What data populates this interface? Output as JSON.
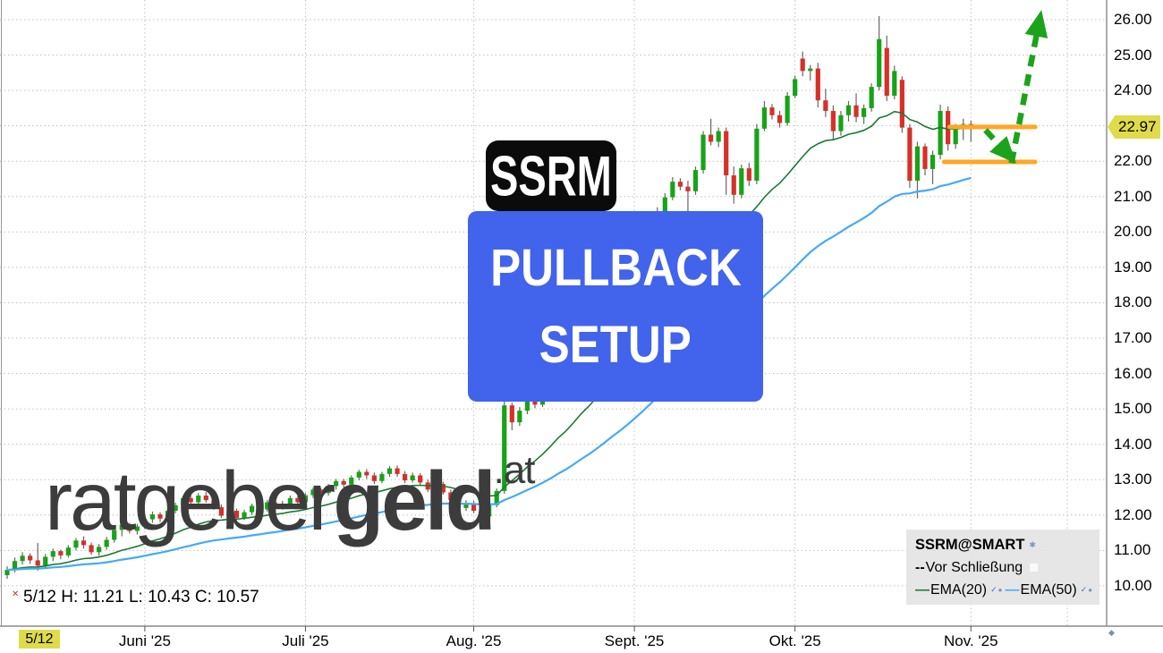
{
  "watermark": {
    "main": "ratgeber",
    "bold": "geld",
    "tld": ".at"
  },
  "overlay": {
    "ticker": "SSRM",
    "line1": "PULLBACK",
    "line2": "SETUP",
    "box_color": "#4263eb",
    "badge_color": "#0b0b0b"
  },
  "readout": {
    "marker": "✕",
    "text": "5/12 H: 11.21 L: 10.43 C: 10.57"
  },
  "price_tag": {
    "value": "22.97",
    "color": "#dfdb4a"
  },
  "legend": {
    "title": "SSRM@SMART",
    "title_icon": "✱",
    "row2_prefix": "--",
    "row2_label": "Vor Schließung",
    "ema20_prefix": "—",
    "ema20_label": "EMA(20)",
    "ema50_prefix": "—",
    "ema50_label": "EMA(50)",
    "check_icon": "✓",
    "dot_icon": "●"
  },
  "x_axis": {
    "highlight_label": "5/12",
    "end_marker": "◆",
    "months": [
      {
        "label": "Juni '25",
        "index": 18
      },
      {
        "label": "Juli '25",
        "index": 39
      },
      {
        "label": "Aug. '25",
        "index": 61
      },
      {
        "label": "Sept. '25",
        "index": 82
      },
      {
        "label": "Okt. '25",
        "index": 103
      },
      {
        "label": "Nov. '25",
        "index": 126
      }
    ]
  },
  "y_axis": {
    "ticks": [
      {
        "value": 26,
        "label": "26.00"
      },
      {
        "value": 25,
        "label": "25.00"
      },
      {
        "value": 24,
        "label": "24.00"
      },
      {
        "value": 22,
        "label": "22.00"
      },
      {
        "value": 21,
        "label": "21.00"
      },
      {
        "value": 20,
        "label": "20.00"
      },
      {
        "value": 19,
        "label": "19.00"
      },
      {
        "value": 18,
        "label": "18.00"
      },
      {
        "value": 17,
        "label": "17.00"
      },
      {
        "value": 16,
        "label": "16.00"
      },
      {
        "value": 15,
        "label": "15.00"
      },
      {
        "value": 14,
        "label": "14.00"
      },
      {
        "value": 13,
        "label": "13.00"
      },
      {
        "value": 12,
        "label": "12.00"
      },
      {
        "value": 11,
        "label": "11.00"
      },
      {
        "value": 10,
        "label": "10.00"
      }
    ],
    "gridline_values": [
      10,
      11,
      12,
      13,
      14,
      15,
      16,
      17,
      18,
      19,
      20,
      21,
      22,
      23,
      24,
      25,
      26
    ]
  },
  "chart_data": {
    "type": "candlestick",
    "symbol": "SSRM",
    "title": "SSRM@SMART",
    "ylim": [
      10,
      26
    ],
    "grid": true,
    "last_price": 22.97,
    "selected_candle_index": 4,
    "ema_periods": [
      20,
      50
    ],
    "colors": {
      "up": "#17a317",
      "down": "#d63029",
      "wick": "#666666",
      "ema20": "#1b7a33",
      "ema50": "#47a9f5",
      "grid": "#c0c0c0",
      "level": "#ffa726",
      "arrow": "#1ba41b"
    },
    "candles": [
      [
        10.3,
        10.55,
        10.2,
        10.45
      ],
      [
        10.45,
        10.8,
        10.38,
        10.7
      ],
      [
        10.7,
        10.95,
        10.6,
        10.85
      ],
      [
        10.85,
        10.92,
        10.62,
        10.72
      ],
      [
        10.72,
        11.21,
        10.43,
        10.57
      ],
      [
        10.57,
        10.9,
        10.5,
        10.82
      ],
      [
        10.82,
        11.05,
        10.7,
        10.98
      ],
      [
        10.98,
        11.02,
        10.75,
        10.86
      ],
      [
        10.86,
        11.15,
        10.8,
        11.08
      ],
      [
        11.08,
        11.35,
        11.0,
        11.28
      ],
      [
        11.28,
        11.4,
        11.05,
        11.15
      ],
      [
        11.15,
        11.22,
        10.88,
        10.95
      ],
      [
        10.95,
        11.18,
        10.85,
        11.1
      ],
      [
        11.1,
        11.38,
        11.02,
        11.3
      ],
      [
        11.3,
        11.65,
        11.22,
        11.58
      ],
      [
        11.58,
        11.8,
        11.4,
        11.72
      ],
      [
        11.72,
        11.78,
        11.48,
        11.55
      ],
      [
        11.55,
        11.75,
        11.45,
        11.68
      ],
      [
        11.68,
        11.95,
        11.6,
        11.88
      ],
      [
        11.88,
        12.1,
        11.78,
        12.02
      ],
      [
        12.02,
        12.08,
        11.8,
        11.9
      ],
      [
        11.9,
        12.18,
        11.85,
        12.12
      ],
      [
        12.12,
        12.35,
        12.05,
        12.28
      ],
      [
        12.28,
        12.55,
        12.2,
        12.48
      ],
      [
        12.48,
        12.6,
        12.28,
        12.36
      ],
      [
        12.36,
        12.62,
        12.3,
        12.55
      ],
      [
        12.55,
        12.65,
        12.35,
        12.42
      ],
      [
        12.42,
        12.5,
        12.15,
        12.22
      ],
      [
        12.22,
        12.3,
        11.92,
        11.98
      ],
      [
        11.98,
        12.2,
        11.9,
        12.12
      ],
      [
        12.12,
        12.18,
        11.85,
        11.92
      ],
      [
        11.92,
        12.15,
        11.86,
        12.08
      ],
      [
        12.08,
        12.32,
        12.0,
        12.26
      ],
      [
        12.26,
        12.34,
        12.08,
        12.16
      ],
      [
        12.16,
        12.42,
        12.1,
        12.36
      ],
      [
        12.36,
        12.44,
        12.14,
        12.22
      ],
      [
        12.22,
        12.4,
        12.15,
        12.32
      ],
      [
        12.32,
        12.55,
        12.25,
        12.48
      ],
      [
        12.48,
        12.55,
        12.28,
        12.36
      ],
      [
        12.36,
        12.62,
        12.3,
        12.56
      ],
      [
        12.56,
        12.78,
        12.48,
        12.72
      ],
      [
        12.72,
        12.78,
        12.52,
        12.62
      ],
      [
        12.62,
        12.88,
        12.55,
        12.82
      ],
      [
        12.82,
        13.02,
        12.72,
        12.96
      ],
      [
        12.96,
        13.02,
        12.78,
        12.86
      ],
      [
        12.86,
        13.12,
        12.8,
        13.06
      ],
      [
        13.06,
        13.28,
        12.98,
        13.22
      ],
      [
        13.22,
        13.3,
        13.02,
        13.12
      ],
      [
        13.12,
        13.2,
        12.88,
        12.96
      ],
      [
        12.96,
        13.22,
        12.9,
        13.16
      ],
      [
        13.16,
        13.38,
        13.08,
        13.32
      ],
      [
        13.32,
        13.4,
        13.08,
        13.16
      ],
      [
        13.16,
        13.24,
        12.9,
        12.98
      ],
      [
        12.98,
        13.2,
        12.92,
        13.12
      ],
      [
        13.12,
        13.18,
        12.85,
        12.92
      ],
      [
        12.92,
        13.0,
        12.65,
        12.72
      ],
      [
        12.72,
        12.95,
        12.65,
        12.88
      ],
      [
        12.88,
        12.94,
        12.58,
        12.64
      ],
      [
        12.64,
        12.72,
        12.35,
        12.42
      ],
      [
        12.42,
        12.52,
        12.12,
        12.2
      ],
      [
        12.2,
        12.42,
        12.12,
        12.32
      ],
      [
        12.32,
        12.4,
        12.05,
        12.12
      ],
      [
        12.12,
        12.22,
        11.88,
        11.96
      ],
      [
        11.96,
        12.35,
        11.9,
        12.28
      ],
      [
        12.28,
        12.75,
        12.22,
        12.68
      ],
      [
        12.68,
        15.35,
        12.6,
        15.1
      ],
      [
        15.1,
        15.18,
        14.4,
        14.62
      ],
      [
        14.62,
        15.05,
        14.52,
        14.95
      ],
      [
        14.95,
        15.4,
        14.85,
        15.28
      ],
      [
        15.28,
        15.38,
        15.02,
        15.12
      ],
      [
        15.12,
        15.6,
        15.05,
        15.52
      ],
      [
        15.52,
        16.1,
        15.45,
        16.0
      ],
      [
        16.0,
        16.55,
        15.9,
        16.42
      ],
      [
        16.42,
        16.5,
        16.1,
        16.22
      ],
      [
        16.22,
        16.9,
        16.15,
        16.8
      ],
      [
        16.8,
        17.4,
        16.72,
        17.28
      ],
      [
        17.28,
        17.35,
        16.95,
        17.08
      ],
      [
        17.08,
        17.7,
        17.0,
        17.6
      ],
      [
        17.6,
        18.2,
        17.52,
        18.1
      ],
      [
        18.1,
        18.6,
        18.0,
        18.48
      ],
      [
        18.48,
        18.55,
        18.15,
        18.28
      ],
      [
        18.28,
        18.9,
        18.2,
        18.8
      ],
      [
        18.8,
        19.4,
        18.72,
        19.3
      ],
      [
        19.3,
        19.8,
        19.2,
        19.68
      ],
      [
        19.68,
        20.2,
        19.6,
        20.08
      ],
      [
        20.08,
        20.7,
        20.0,
        20.58
      ],
      [
        20.58,
        21.1,
        20.48,
        20.98
      ],
      [
        20.98,
        21.55,
        20.9,
        21.42
      ],
      [
        21.42,
        21.52,
        21.18,
        21.28
      ],
      [
        21.28,
        21.45,
        20.4,
        21.15
      ],
      [
        21.15,
        21.85,
        21.05,
        21.75
      ],
      [
        21.75,
        22.85,
        21.65,
        22.75
      ],
      [
        22.75,
        23.2,
        22.45,
        22.55
      ],
      [
        22.55,
        22.95,
        22.4,
        22.85
      ],
      [
        22.85,
        22.95,
        21.05,
        21.6
      ],
      [
        21.6,
        21.85,
        20.8,
        21.05
      ],
      [
        21.05,
        21.9,
        20.95,
        21.8
      ],
      [
        21.8,
        21.95,
        21.3,
        21.45
      ],
      [
        21.45,
        23.05,
        21.35,
        22.92
      ],
      [
        22.92,
        23.7,
        22.85,
        23.52
      ],
      [
        23.52,
        23.62,
        23.18,
        23.3
      ],
      [
        23.3,
        23.42,
        22.95,
        23.08
      ],
      [
        23.08,
        23.95,
        23.0,
        23.85
      ],
      [
        23.85,
        24.42,
        23.78,
        24.32
      ],
      [
        24.9,
        25.1,
        24.4,
        24.55
      ],
      [
        24.55,
        24.72,
        24.28,
        24.62
      ],
      [
        24.62,
        24.78,
        23.52,
        23.72
      ],
      [
        23.72,
        24.05,
        23.25,
        23.42
      ],
      [
        23.42,
        23.58,
        22.62,
        22.85
      ],
      [
        22.85,
        23.42,
        22.72,
        23.3
      ],
      [
        23.3,
        23.7,
        23.12,
        23.58
      ],
      [
        23.58,
        23.92,
        23.1,
        23.25
      ],
      [
        23.25,
        23.6,
        23.05,
        23.5
      ],
      [
        23.5,
        24.2,
        23.4,
        24.1
      ],
      [
        24.1,
        26.1,
        24.0,
        25.45
      ],
      [
        25.2,
        25.55,
        23.7,
        23.85
      ],
      [
        23.85,
        24.7,
        23.75,
        24.55
      ],
      [
        24.3,
        24.4,
        22.8,
        22.95
      ],
      [
        22.95,
        23.05,
        21.25,
        21.45
      ],
      [
        21.45,
        22.55,
        20.95,
        22.42
      ],
      [
        22.42,
        22.5,
        21.6,
        21.78
      ],
      [
        21.78,
        22.3,
        21.35,
        22.18
      ],
      [
        22.18,
        23.6,
        22.05,
        23.42
      ],
      [
        23.42,
        23.55,
        22.3,
        22.48
      ],
      [
        22.48,
        23.05,
        22.35,
        22.95
      ],
      [
        22.95,
        23.2,
        22.6,
        23.05
      ],
      [
        23.05,
        23.15,
        22.55,
        22.97
      ]
    ],
    "annotations": {
      "levels": [
        {
          "price": 22.97,
          "from_index": 123.2,
          "to_index": 134.4
        },
        {
          "price": 21.98,
          "from_index": 122.5,
          "to_index": 134.4
        }
      ],
      "arrows": [
        {
          "dir": "down",
          "from": [
            127.9,
            22.88
          ],
          "to": [
            130.8,
            22.2
          ]
        },
        {
          "dir": "up",
          "from": [
            131.3,
            21.95
          ],
          "to": [
            134.9,
            25.92
          ]
        }
      ]
    }
  }
}
